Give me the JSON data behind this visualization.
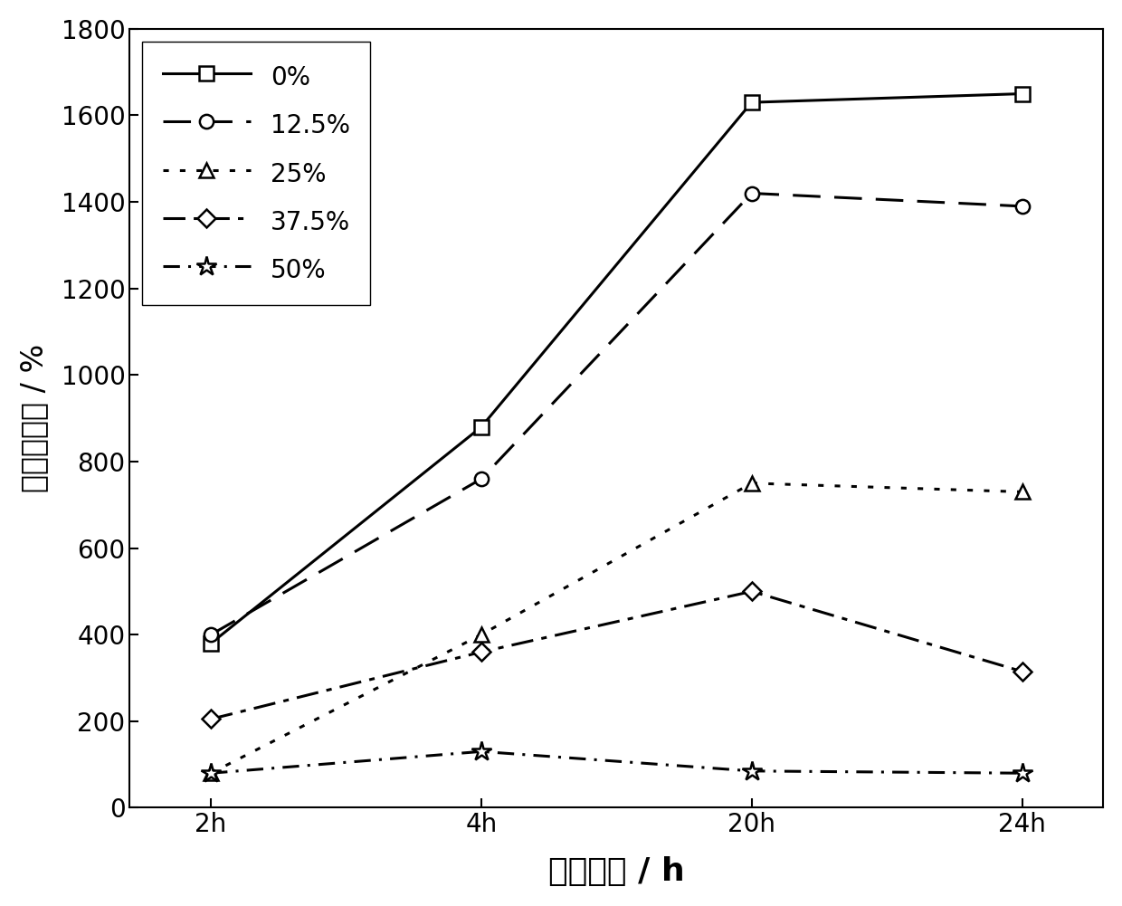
{
  "x_labels": [
    "2h",
    "4h",
    "20h",
    "24h"
  ],
  "x_positions": [
    0,
    1,
    2,
    3
  ],
  "series": [
    {
      "label": "0%",
      "y": [
        380,
        880,
        1630,
        1650
      ],
      "linestyle": "solid",
      "marker": "s",
      "linewidth": 2.2,
      "markersize": 11,
      "dashes": [],
      "fillstyle": "none"
    },
    {
      "label": "12.5%",
      "y": [
        400,
        760,
        1420,
        1390
      ],
      "linestyle": "dashed",
      "marker": "o",
      "linewidth": 2.2,
      "markersize": 11,
      "dashes": [
        10,
        5
      ],
      "fillstyle": "none"
    },
    {
      "label": "25%",
      "y": [
        80,
        400,
        750,
        730
      ],
      "linestyle": "dotted",
      "marker": "^",
      "linewidth": 2.2,
      "markersize": 11,
      "dashes": [
        2,
        4
      ],
      "fillstyle": "none"
    },
    {
      "label": "37.5%",
      "y": [
        205,
        360,
        500,
        315
      ],
      "linestyle": "dashdot",
      "marker": "D",
      "linewidth": 2.2,
      "markersize": 10,
      "dashes": [
        8,
        3,
        2,
        3
      ],
      "fillstyle": "none"
    },
    {
      "label": "50%",
      "y": [
        80,
        130,
        85,
        80
      ],
      "linestyle": "dashdot",
      "marker": "*",
      "linewidth": 2.2,
      "markersize": 16,
      "dashes": [
        6,
        3,
        1,
        3
      ],
      "fillstyle": "none"
    }
  ],
  "ylabel": "平衡溶胀率 / %",
  "xlabel": "溶胀时间 / h",
  "ylim": [
    0,
    1800
  ],
  "yticks": [
    0,
    200,
    400,
    600,
    800,
    1000,
    1200,
    1400,
    1600,
    1800
  ],
  "label_fontsize": 24,
  "tick_fontsize": 20,
  "legend_fontsize": 20,
  "background_color": "#ffffff"
}
